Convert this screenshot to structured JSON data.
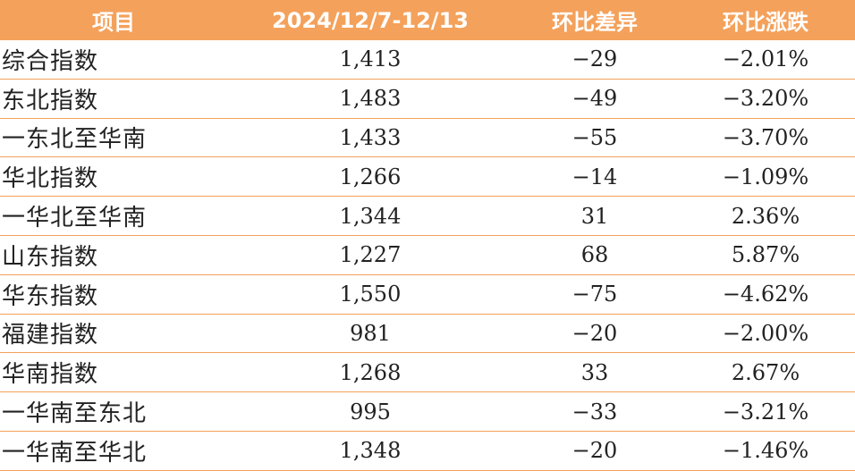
{
  "table": {
    "headers": [
      "项目",
      "2024/12/7-12/13",
      "环比差异",
      "环比涨跌"
    ],
    "rows": [
      [
        "综合指数",
        "1,413",
        "−29",
        "−2.01%"
      ],
      [
        "东北指数",
        "1,483",
        "−49",
        "−3.20%"
      ],
      [
        "一东北至华南",
        "1,433",
        "−55",
        "−3.70%"
      ],
      [
        "华北指数",
        "1,266",
        "−14",
        "−1.09%"
      ],
      [
        "一华北至华南",
        "1,344",
        "31",
        "2.36%"
      ],
      [
        "山东指数",
        "1,227",
        "68",
        "5.87%"
      ],
      [
        "华东指数",
        "1,550",
        "−75",
        "−4.62%"
      ],
      [
        "福建指数",
        "981",
        "−20",
        "−2.00%"
      ],
      [
        "华南指数",
        "1,268",
        "33",
        "2.67%"
      ],
      [
        "一华南至东北",
        "995",
        "−33",
        "−3.21%"
      ],
      [
        "一华南至华北",
        "1,348",
        "−20",
        "−1.46%"
      ]
    ]
  },
  "colors": {
    "header_bg": "#f4a15b",
    "header_text": "#ffffff",
    "row_border": "#f4a15b"
  }
}
